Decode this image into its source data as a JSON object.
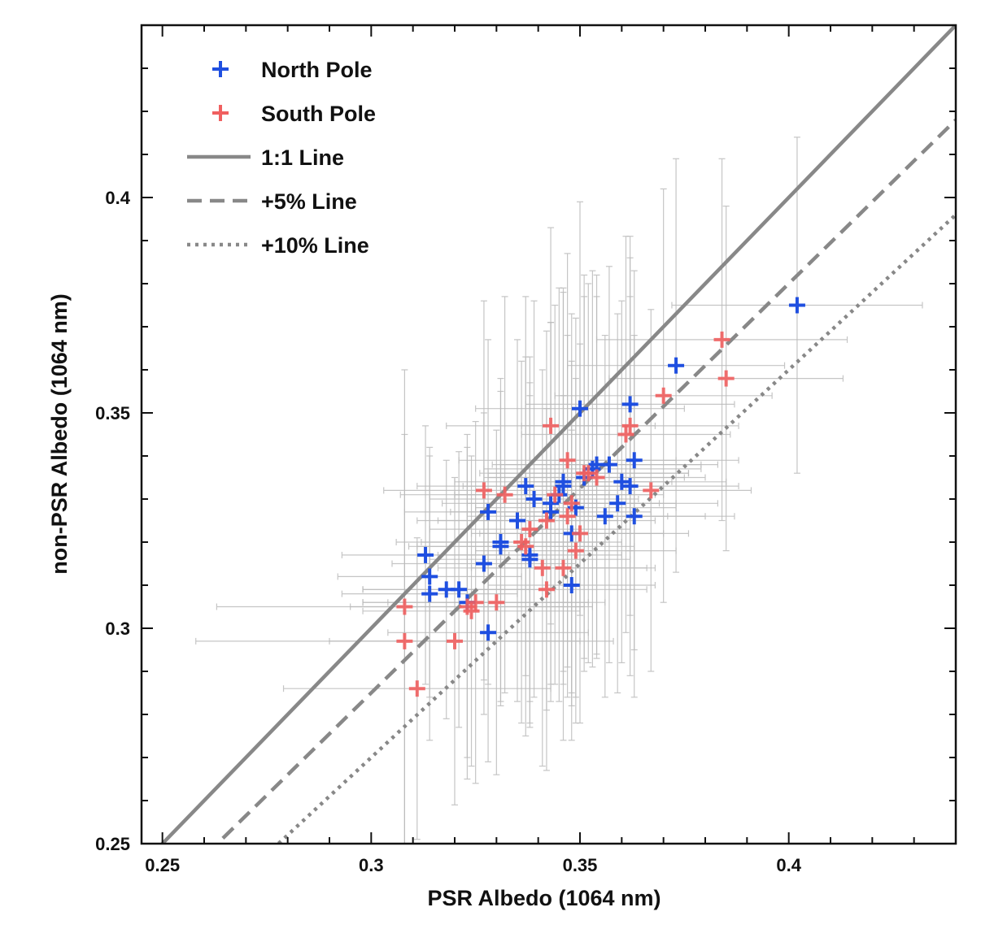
{
  "chart_data": {
    "type": "scatter",
    "xlabel": "PSR Albedo (1064 nm)",
    "ylabel": "non-PSR Albedo (1064 nm)",
    "xlim": [
      0.245,
      0.44
    ],
    "ylim": [
      0.25,
      0.44
    ],
    "xticks": [
      0.25,
      0.3,
      0.35,
      0.4
    ],
    "yticks": [
      0.25,
      0.3,
      0.35,
      0.4
    ],
    "x_tick_labels": [
      "0.25",
      "0.3",
      "0.35",
      "0.4"
    ],
    "y_tick_labels": [
      "0.25",
      "0.3",
      "0.35",
      "0.4"
    ],
    "grid": false,
    "legend_position": "top-left",
    "error_bar_color": "#bbbbbb",
    "series": [
      {
        "name": "North Pole",
        "color": "#1f4fe0",
        "marker": "plus",
        "points": [
          {
            "x": 0.313,
            "y": 0.317,
            "xerr": 0.02,
            "yerr": 0.03
          },
          {
            "x": 0.314,
            "y": 0.312,
            "xerr": 0.022,
            "yerr": 0.028
          },
          {
            "x": 0.314,
            "y": 0.308,
            "xerr": 0.021,
            "yerr": 0.034
          },
          {
            "x": 0.318,
            "y": 0.309,
            "xerr": 0.02,
            "yerr": 0.03
          },
          {
            "x": 0.321,
            "y": 0.309,
            "xerr": 0.023,
            "yerr": 0.032
          },
          {
            "x": 0.323,
            "y": 0.306,
            "xerr": 0.025,
            "yerr": 0.036
          },
          {
            "x": 0.327,
            "y": 0.315,
            "xerr": 0.022,
            "yerr": 0.035
          },
          {
            "x": 0.328,
            "y": 0.299,
            "xerr": 0.024,
            "yerr": 0.03
          },
          {
            "x": 0.328,
            "y": 0.327,
            "xerr": 0.02,
            "yerr": 0.04
          },
          {
            "x": 0.331,
            "y": 0.32,
            "xerr": 0.025,
            "yerr": 0.038
          },
          {
            "x": 0.331,
            "y": 0.319,
            "xerr": 0.022,
            "yerr": 0.036
          },
          {
            "x": 0.335,
            "y": 0.325,
            "xerr": 0.024,
            "yerr": 0.042
          },
          {
            "x": 0.337,
            "y": 0.333,
            "xerr": 0.026,
            "yerr": 0.044
          },
          {
            "x": 0.338,
            "y": 0.317,
            "xerr": 0.022,
            "yerr": 0.04
          },
          {
            "x": 0.338,
            "y": 0.316,
            "xerr": 0.024,
            "yerr": 0.038
          },
          {
            "x": 0.339,
            "y": 0.33,
            "xerr": 0.025,
            "yerr": 0.046
          },
          {
            "x": 0.343,
            "y": 0.327,
            "xerr": 0.024,
            "yerr": 0.044
          },
          {
            "x": 0.343,
            "y": 0.329,
            "xerr": 0.026,
            "yerr": 0.042
          },
          {
            "x": 0.345,
            "y": 0.331,
            "xerr": 0.025,
            "yerr": 0.048
          },
          {
            "x": 0.346,
            "y": 0.333,
            "xerr": 0.024,
            "yerr": 0.046
          },
          {
            "x": 0.346,
            "y": 0.334,
            "xerr": 0.026,
            "yerr": 0.044
          },
          {
            "x": 0.348,
            "y": 0.322,
            "xerr": 0.022,
            "yerr": 0.04
          },
          {
            "x": 0.348,
            "y": 0.31,
            "xerr": 0.02,
            "yerr": 0.036
          },
          {
            "x": 0.349,
            "y": 0.328,
            "xerr": 0.024,
            "yerr": 0.044
          },
          {
            "x": 0.35,
            "y": 0.351,
            "xerr": 0.025,
            "yerr": 0.048
          },
          {
            "x": 0.351,
            "y": 0.335,
            "xerr": 0.024,
            "yerr": 0.042
          },
          {
            "x": 0.353,
            "y": 0.337,
            "xerr": 0.026,
            "yerr": 0.046
          },
          {
            "x": 0.354,
            "y": 0.338,
            "xerr": 0.025,
            "yerr": 0.044
          },
          {
            "x": 0.356,
            "y": 0.326,
            "xerr": 0.024,
            "yerr": 0.042
          },
          {
            "x": 0.357,
            "y": 0.338,
            "xerr": 0.026,
            "yerr": 0.046
          },
          {
            "x": 0.359,
            "y": 0.329,
            "xerr": 0.024,
            "yerr": 0.044
          },
          {
            "x": 0.36,
            "y": 0.334,
            "xerr": 0.025,
            "yerr": 0.042
          },
          {
            "x": 0.362,
            "y": 0.333,
            "xerr": 0.026,
            "yerr": 0.044
          },
          {
            "x": 0.362,
            "y": 0.352,
            "xerr": 0.025,
            "yerr": 0.034
          },
          {
            "x": 0.363,
            "y": 0.326,
            "xerr": 0.024,
            "yerr": 0.042
          },
          {
            "x": 0.363,
            "y": 0.339,
            "xerr": 0.025,
            "yerr": 0.044
          },
          {
            "x": 0.373,
            "y": 0.361,
            "xerr": 0.026,
            "yerr": 0.048
          },
          {
            "x": 0.402,
            "y": 0.375,
            "xerr": 0.03,
            "yerr": 0.039
          }
        ]
      },
      {
        "name": "South Pole",
        "color": "#f06060",
        "marker": "plus",
        "points": [
          {
            "x": 0.308,
            "y": 0.305,
            "xerr": 0.045,
            "yerr": 0.055
          },
          {
            "x": 0.308,
            "y": 0.297,
            "xerr": 0.05,
            "yerr": 0.048
          },
          {
            "x": 0.311,
            "y": 0.286,
            "xerr": 0.032,
            "yerr": 0.035
          },
          {
            "x": 0.32,
            "y": 0.297,
            "xerr": 0.03,
            "yerr": 0.038
          },
          {
            "x": 0.323,
            "y": 0.305,
            "xerr": 0.028,
            "yerr": 0.04
          },
          {
            "x": 0.324,
            "y": 0.304,
            "xerr": 0.026,
            "yerr": 0.036
          },
          {
            "x": 0.325,
            "y": 0.306,
            "xerr": 0.027,
            "yerr": 0.042
          },
          {
            "x": 0.327,
            "y": 0.332,
            "xerr": 0.024,
            "yerr": 0.044
          },
          {
            "x": 0.33,
            "y": 0.306,
            "xerr": 0.026,
            "yerr": 0.04
          },
          {
            "x": 0.332,
            "y": 0.331,
            "xerr": 0.025,
            "yerr": 0.046
          },
          {
            "x": 0.336,
            "y": 0.32,
            "xerr": 0.024,
            "yerr": 0.042
          },
          {
            "x": 0.337,
            "y": 0.319,
            "xerr": 0.026,
            "yerr": 0.044
          },
          {
            "x": 0.338,
            "y": 0.323,
            "xerr": 0.024,
            "yerr": 0.04
          },
          {
            "x": 0.341,
            "y": 0.314,
            "xerr": 0.025,
            "yerr": 0.046
          },
          {
            "x": 0.342,
            "y": 0.309,
            "xerr": 0.024,
            "yerr": 0.042
          },
          {
            "x": 0.342,
            "y": 0.325,
            "xerr": 0.026,
            "yerr": 0.044
          },
          {
            "x": 0.343,
            "y": 0.347,
            "xerr": 0.025,
            "yerr": 0.046
          },
          {
            "x": 0.344,
            "y": 0.331,
            "xerr": 0.024,
            "yerr": 0.044
          },
          {
            "x": 0.346,
            "y": 0.314,
            "xerr": 0.022,
            "yerr": 0.04
          },
          {
            "x": 0.347,
            "y": 0.339,
            "xerr": 0.026,
            "yerr": 0.048
          },
          {
            "x": 0.347,
            "y": 0.326,
            "xerr": 0.024,
            "yerr": 0.042
          },
          {
            "x": 0.348,
            "y": 0.329,
            "xerr": 0.025,
            "yerr": 0.044
          },
          {
            "x": 0.349,
            "y": 0.318,
            "xerr": 0.024,
            "yerr": 0.04
          },
          {
            "x": 0.35,
            "y": 0.322,
            "xerr": 0.026,
            "yerr": 0.044
          },
          {
            "x": 0.351,
            "y": 0.336,
            "xerr": 0.025,
            "yerr": 0.046
          },
          {
            "x": 0.352,
            "y": 0.336,
            "xerr": 0.024,
            "yerr": 0.044
          },
          {
            "x": 0.354,
            "y": 0.335,
            "xerr": 0.026,
            "yerr": 0.042
          },
          {
            "x": 0.361,
            "y": 0.345,
            "xerr": 0.025,
            "yerr": 0.046
          },
          {
            "x": 0.362,
            "y": 0.347,
            "xerr": 0.026,
            "yerr": 0.044
          },
          {
            "x": 0.367,
            "y": 0.332,
            "xerr": 0.024,
            "yerr": 0.042
          },
          {
            "x": 0.37,
            "y": 0.354,
            "xerr": 0.026,
            "yerr": 0.048
          },
          {
            "x": 0.384,
            "y": 0.367,
            "xerr": 0.03,
            "yerr": 0.042
          },
          {
            "x": 0.385,
            "y": 0.358,
            "xerr": 0.028,
            "yerr": 0.04
          }
        ]
      }
    ],
    "reference_lines": [
      {
        "name": "1:1 Line",
        "factor": 1.0,
        "style": "solid",
        "color": "#888888"
      },
      {
        "name": "+5% Line",
        "factor": 0.95,
        "style": "dashed",
        "color": "#888888"
      },
      {
        "name": "+10% Line",
        "factor": 0.9,
        "style": "dotted",
        "color": "#888888"
      }
    ]
  }
}
